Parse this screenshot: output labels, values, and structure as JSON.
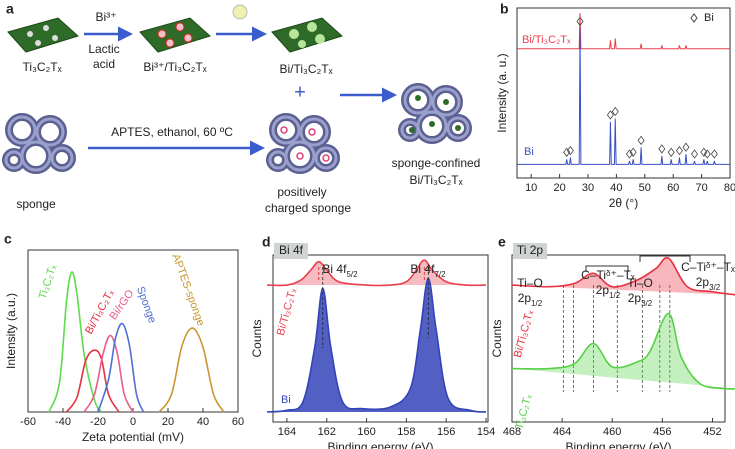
{
  "diagram": {
    "panel_label": "a",
    "bi_ion": "Bi³⁺",
    "lactic": "Lactic",
    "acid": "acid",
    "sheet_1": "Ti₃C₂Tₓ",
    "sheet_2": "Bi³⁺/Ti₃C₂Tₓ",
    "sheet_3": "Bi/Ti₃C₂Tₓ",
    "plus": "+",
    "conditions": "APTES, ethanol, 60 ºC",
    "sponge": "sponge",
    "charged_1": "positively",
    "charged_2": "charged sponge",
    "confined_1": "sponge-confined",
    "confined_2": "Bi/Ti₃C₂Tₓ"
  },
  "chart_data": [
    {
      "type": "line",
      "panel_label": "b",
      "xlabel": "2θ (°)",
      "ylabel": "Intensity (a. u.)",
      "marker_legend": "Bi",
      "xlim": [
        5,
        80
      ],
      "xticks": [
        10,
        20,
        30,
        40,
        50,
        60,
        70,
        80
      ],
      "ylim": [
        0,
        100
      ],
      "smooth": false,
      "fill_area": false,
      "peak_markers": true,
      "series": [
        {
          "name": "Bi/Ti₃C₂Tₓ",
          "color": "#e8404f",
          "x": [
            5,
            26.9,
            27.2,
            27.5,
            37.6,
            37.9,
            38.2,
            39.3,
            39.6,
            39.9,
            48.4,
            48.7,
            49.0,
            55.7,
            56.0,
            56.3,
            61.9,
            62.2,
            62.5,
            64.2,
            64.5,
            64.8,
            80
          ],
          "values": [
            76,
            76,
            97,
            76,
            76,
            81,
            76,
            76,
            82,
            76,
            76,
            79,
            76,
            76,
            78,
            76,
            76,
            78,
            76,
            76,
            78,
            76,
            76
          ]
        },
        {
          "name": "Bi",
          "color": "#3a4fc4",
          "x": [
            5,
            22.2,
            22.5,
            22.8,
            23.5,
            23.8,
            24.1,
            26.9,
            27.2,
            27.5,
            37.6,
            37.9,
            38.2,
            39.3,
            39.6,
            39.9,
            44.3,
            44.6,
            44.9,
            45.6,
            45.9,
            46.2,
            48.4,
            48.7,
            49.0,
            55.7,
            56.0,
            56.3,
            59.0,
            59.3,
            59.6,
            61.9,
            62.2,
            62.5,
            64.2,
            64.5,
            64.8,
            67.2,
            67.5,
            67.8,
            70.5,
            70.8,
            71.1,
            71.7,
            72.0,
            72.3,
            74.2,
            74.5,
            74.8,
            80
          ],
          "values": [
            8,
            8,
            11,
            8,
            8,
            12,
            8,
            8,
            88,
            8,
            8,
            33,
            8,
            8,
            35,
            8,
            8,
            10,
            8,
            8,
            11,
            8,
            8,
            18,
            8,
            8,
            13,
            8,
            8,
            11,
            8,
            8,
            12,
            8,
            8,
            14,
            8,
            8,
            10,
            8,
            8,
            11,
            8,
            8,
            10,
            8,
            8,
            10,
            8,
            8
          ]
        }
      ]
    },
    {
      "type": "line",
      "panel_label": "c",
      "xlabel": "Zeta potential (mV)",
      "ylabel": "Intensity (a.u.)",
      "xlim": [
        -60,
        60
      ],
      "xticks": [
        -60,
        -40,
        -20,
        0,
        20,
        40,
        60
      ],
      "ylim": [
        0,
        110
      ],
      "smooth": true,
      "fill_area": false,
      "series": [
        {
          "name": "Ti₃C₂Tₓ",
          "color": "#5ddc4c",
          "x": [
            -48,
            -42,
            -38,
            -35,
            -32,
            -28,
            -22,
            -18
          ],
          "values": [
            0,
            20,
            75,
            95,
            80,
            40,
            8,
            0
          ]
        },
        {
          "name": "Bi/Ti₃C₂Tₓ",
          "color": "#e8303f",
          "x": [
            -38,
            -32,
            -27,
            -22,
            -18,
            -14,
            -8
          ],
          "values": [
            0,
            10,
            35,
            42,
            36,
            12,
            0
          ]
        },
        {
          "name": "Bi/rGO",
          "color": "#e95c8c",
          "x": [
            -28,
            -22,
            -17,
            -13,
            -9,
            -5,
            0
          ],
          "values": [
            0,
            12,
            40,
            52,
            40,
            12,
            0
          ]
        },
        {
          "name": "Sponge",
          "color": "#4f6fd6",
          "x": [
            -20,
            -14,
            -10,
            -6,
            -2,
            2,
            6
          ],
          "values": [
            0,
            22,
            50,
            60,
            45,
            12,
            0
          ]
        },
        {
          "name": "APTES-sponge",
          "color": "#c9962f",
          "x": [
            15,
            22,
            28,
            34,
            40,
            46,
            52
          ],
          "values": [
            0,
            12,
            45,
            57,
            44,
            12,
            0
          ]
        }
      ]
    },
    {
      "type": "line",
      "panel_label": "d",
      "spectrum_label": "Bi 4f",
      "xlabel": "Binding energy (eV)",
      "ylabel": "Counts",
      "xlim": [
        164.7,
        153.9
      ],
      "xticks": [
        164,
        162,
        160,
        158,
        156,
        154
      ],
      "ylim": [
        0,
        100
      ],
      "smooth": true,
      "fill_area": true,
      "peak_guides": true,
      "annotations": [
        {
          "main": "Bi 4f",
          "sub": "5/2"
        },
        {
          "main": "Bi 4f",
          "sub": "7/2"
        }
      ],
      "series": [
        {
          "name": "Bi/Ti₃C₂Tₓ",
          "color": "#e8404f",
          "x": [
            165,
            164,
            163.3,
            162.8,
            162.4,
            162,
            161.4,
            160,
            158.8,
            158,
            157.5,
            157.1,
            156.7,
            156,
            155,
            154
          ],
          "values": [
            82,
            82,
            85,
            91,
            96,
            91,
            84,
            82,
            82,
            84,
            91,
            97,
            91,
            84,
            82,
            82
          ]
        },
        {
          "name": "Bi",
          "color": "#3443b8",
          "x": [
            165,
            164,
            163.2,
            162.6,
            162.2,
            161.8,
            161.2,
            160.2,
            158.8,
            157.8,
            157.3,
            156.9,
            156.5,
            155.9,
            154.8,
            154
          ],
          "values": [
            6,
            7,
            12,
            45,
            80,
            45,
            12,
            8,
            9,
            20,
            55,
            86,
            55,
            14,
            7,
            6
          ]
        }
      ]
    },
    {
      "type": "line",
      "panel_label": "e",
      "spectrum_label": "Ti 2p",
      "xlabel": "Binding energy (eV)",
      "ylabel": "Counts",
      "xlim": [
        468,
        451
      ],
      "xticks": [
        468,
        464,
        460,
        456,
        452
      ],
      "ylim": [
        0,
        100
      ],
      "smooth": true,
      "fill_area": true,
      "reference_lines": [
        463.9,
        463.1,
        461.5,
        459.6,
        457.6,
        456.2,
        455.4
      ],
      "annotations": [
        {
          "line1": "Ti–O",
          "line2": "2p",
          "sub": "1/2"
        },
        {
          "line1": "C–Tiᵟ⁺–Tₓ",
          "line2": "2p",
          "sub": "1/2"
        },
        {
          "line1": "Ti–O",
          "line2": "2p",
          "sub": "3/2"
        },
        {
          "line1": "C–Tiᵟ⁺–Tₓ",
          "line2": "2p",
          "sub": "3/2"
        }
      ],
      "series": [
        {
          "name": "Bi/Ti₃C₂Tₓ",
          "color": "#e8303f",
          "x": [
            468,
            465,
            463,
            461.5,
            460,
            458,
            456.5,
            455.5,
            454,
            452,
            450
          ],
          "values": [
            82,
            81,
            83,
            89,
            81,
            85,
            92,
            98,
            81,
            78,
            76
          ]
        },
        {
          "name": "Ti₃C₂Tₓ",
          "color": "#55d145",
          "x": [
            468,
            465,
            463,
            461.5,
            460,
            458,
            457,
            455.5,
            454.5,
            453,
            451,
            450
          ],
          "values": [
            32,
            32,
            35,
            47,
            33,
            36,
            42,
            65,
            39,
            23,
            20,
            20
          ]
        }
      ]
    }
  ]
}
